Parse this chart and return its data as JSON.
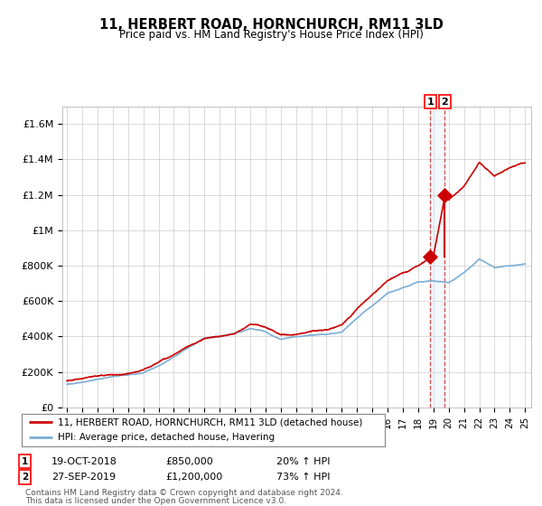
{
  "title": "11, HERBERT ROAD, HORNCHURCH, RM11 3LD",
  "subtitle": "Price paid vs. HM Land Registry's House Price Index (HPI)",
  "ylabel_ticks": [
    "£0",
    "£200K",
    "£400K",
    "£600K",
    "£800K",
    "£1M",
    "£1.2M",
    "£1.4M",
    "£1.6M"
  ],
  "ytick_values": [
    0,
    200000,
    400000,
    600000,
    800000,
    1000000,
    1200000,
    1400000,
    1600000
  ],
  "ylim": [
    0,
    1700000
  ],
  "x_start_year": 1995,
  "x_end_year": 2025,
  "sale1_date": 2018.8,
  "sale1_price": 850000,
  "sale1_label": "19-OCT-2018",
  "sale1_pct": "20% ↑ HPI",
  "sale2_date": 2019.75,
  "sale2_price": 1200000,
  "sale2_label": "27-SEP-2019",
  "sale2_pct": "73% ↑ HPI",
  "legend_line1": "11, HERBERT ROAD, HORNCHURCH, RM11 3LD (detached house)",
  "legend_line2": "HPI: Average price, detached house, Havering",
  "footnote1": "Contains HM Land Registry data © Crown copyright and database right 2024.",
  "footnote2": "This data is licensed under the Open Government Licence v3.0.",
  "hpi_color": "#7bafd4",
  "price_color": "#cc0000",
  "dot_color": "#cc0000",
  "shade_color": "#d6e8f5",
  "background_color": "#ffffff",
  "grid_color": "#cccccc"
}
